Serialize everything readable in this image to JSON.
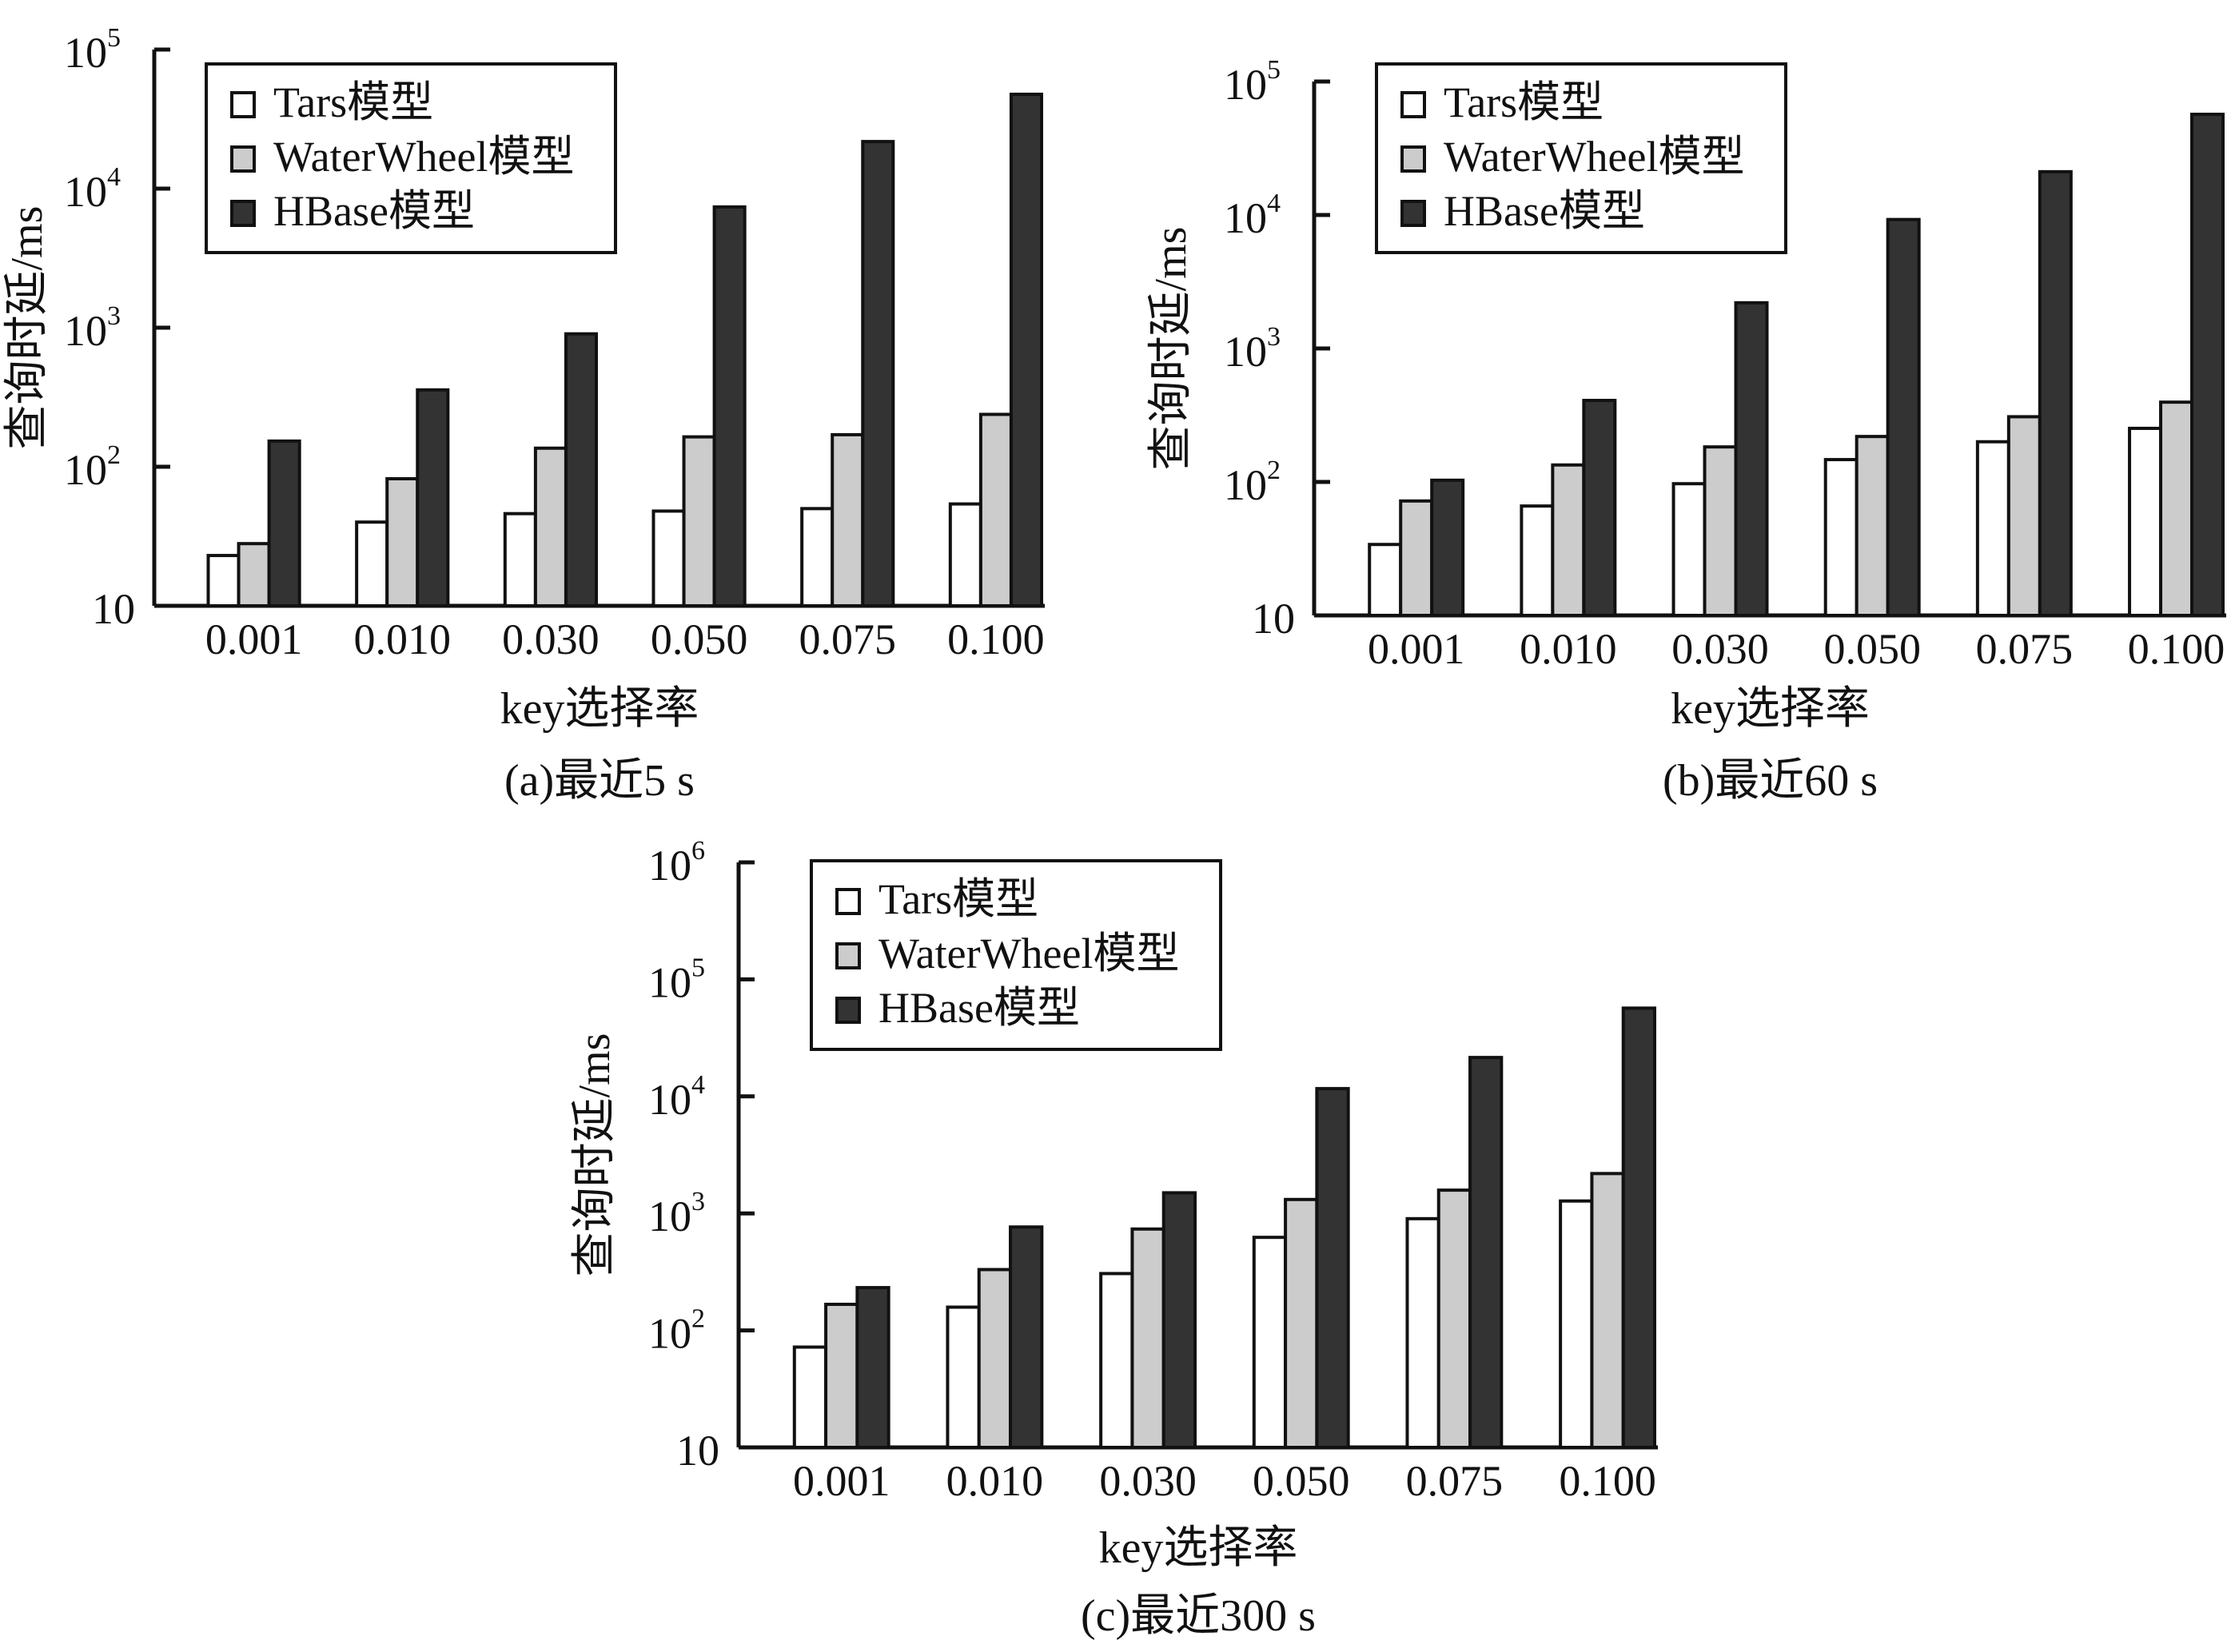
{
  "chart_data": [
    {
      "type": "bar",
      "title": "(a)最近5 s",
      "xlabel": "key选择率",
      "ylabel": "查询时延/ms",
      "yscale": "log",
      "ylim": [
        10,
        100000
      ],
      "yticks": [
        {
          "base": "10",
          "exp": ""
        },
        {
          "base": "10",
          "exp": "2"
        },
        {
          "base": "10",
          "exp": "3"
        },
        {
          "base": "10",
          "exp": "4"
        },
        {
          "base": "10",
          "exp": "5"
        }
      ],
      "categories": [
        "0.001",
        "0.010",
        "0.030",
        "0.050",
        "0.075",
        "0.100"
      ],
      "legend_position": "top-left",
      "series": [
        {
          "name": "Tars模型",
          "color": "#ffffff",
          "values": [
            23,
            40,
            46,
            48,
            50,
            54
          ]
        },
        {
          "name": "WaterWheel模型",
          "color": "#cccccc",
          "values": [
            28,
            82,
            136,
            164,
            170,
            238
          ]
        },
        {
          "name": "HBase模型",
          "color": "#333333",
          "values": [
            153,
            357,
            903,
            7380,
            21800,
            47700
          ]
        }
      ]
    },
    {
      "type": "bar",
      "title": "(b)最近60 s",
      "xlabel": "key选择率",
      "ylabel": "查询时延/ms",
      "yscale": "log",
      "ylim": [
        10,
        100000
      ],
      "yticks": [
        {
          "base": "10",
          "exp": ""
        },
        {
          "base": "10",
          "exp": "2"
        },
        {
          "base": "10",
          "exp": "3"
        },
        {
          "base": "10",
          "exp": "4"
        },
        {
          "base": "10",
          "exp": "5"
        }
      ],
      "categories": [
        "0.001",
        "0.010",
        "0.030",
        "0.050",
        "0.075",
        "0.100"
      ],
      "legend_position": "top-left",
      "series": [
        {
          "name": "Tars模型",
          "color": "#ffffff",
          "values": [
            34,
            66,
            97,
            147,
            200,
            252
          ]
        },
        {
          "name": "WaterWheel模型",
          "color": "#cccccc",
          "values": [
            72,
            134,
            183,
            219,
            308,
            396
          ]
        },
        {
          "name": "HBase模型",
          "color": "#333333",
          "values": [
            103,
            408,
            2200,
            9250,
            21100,
            56800
          ]
        }
      ]
    },
    {
      "type": "bar",
      "title": "(c)最近300 s",
      "xlabel": "key选择率",
      "ylabel": "查询时延/ms",
      "yscale": "log",
      "ylim": [
        10,
        1000000
      ],
      "yticks": [
        {
          "base": "10",
          "exp": ""
        },
        {
          "base": "10",
          "exp": "2"
        },
        {
          "base": "10",
          "exp": "3"
        },
        {
          "base": "10",
          "exp": "4"
        },
        {
          "base": "10",
          "exp": "5"
        },
        {
          "base": "10",
          "exp": "6"
        }
      ],
      "categories": [
        "0.001",
        "0.010",
        "0.030",
        "0.050",
        "0.075",
        "0.100"
      ],
      "legend_position": "top-left",
      "series": [
        {
          "name": "Tars模型",
          "color": "#ffffff",
          "values": [
            72,
            158,
            306,
            624,
            901,
            1276
          ]
        },
        {
          "name": "WaterWheel模型",
          "color": "#cccccc",
          "values": [
            167,
            331,
            735,
            1315,
            1580,
            2190
          ]
        },
        {
          "name": "HBase模型",
          "color": "#333333",
          "values": [
            232,
            765,
            1500,
            11650,
            21500,
            56800
          ]
        }
      ]
    }
  ]
}
